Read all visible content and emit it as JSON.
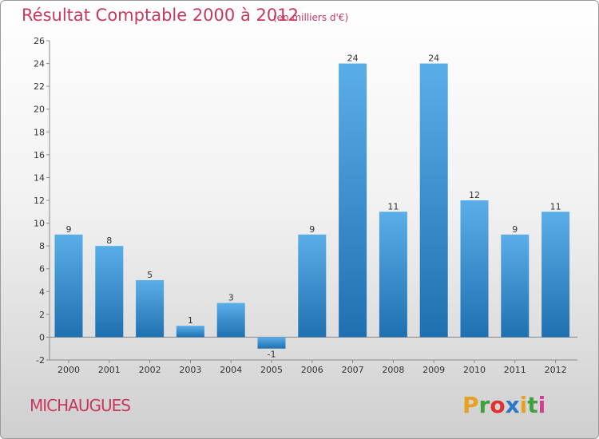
{
  "header": {
    "title": "Résultat Comptable 2000 à 2012",
    "unit": "(en milliers d'€)"
  },
  "footer": {
    "commune": "MICHAUGUES",
    "logo_text": "Proxiti",
    "logo_colors": [
      "#e8a020",
      "#3fa040",
      "#e03030",
      "#2b77c8",
      "#e8a020",
      "#3fa040",
      "#d04090"
    ]
  },
  "colors": {
    "bar_top": "#5aaee8",
    "bar_bottom": "#1f70b0",
    "title": "#c8385e"
  },
  "chart_data": {
    "type": "bar",
    "categories": [
      "2000",
      "2001",
      "2002",
      "2003",
      "2004",
      "2005",
      "2006",
      "2007",
      "2008",
      "2009",
      "2010",
      "2011",
      "2012"
    ],
    "values": [
      9,
      8,
      5,
      1,
      3,
      -1,
      9,
      24,
      11,
      24,
      12,
      9,
      11
    ],
    "data_labels": [
      "9",
      "8",
      "5",
      "1",
      "3",
      "-1",
      "9",
      "24",
      "11",
      "24",
      "12",
      "9",
      "11"
    ],
    "yticks": [
      "-2",
      "0",
      "2",
      "4",
      "6",
      "8",
      "10",
      "12",
      "14",
      "16",
      "18",
      "20",
      "22",
      "24",
      "26"
    ],
    "ylim": [
      -2,
      26
    ],
    "grid": false,
    "legend": "none"
  }
}
